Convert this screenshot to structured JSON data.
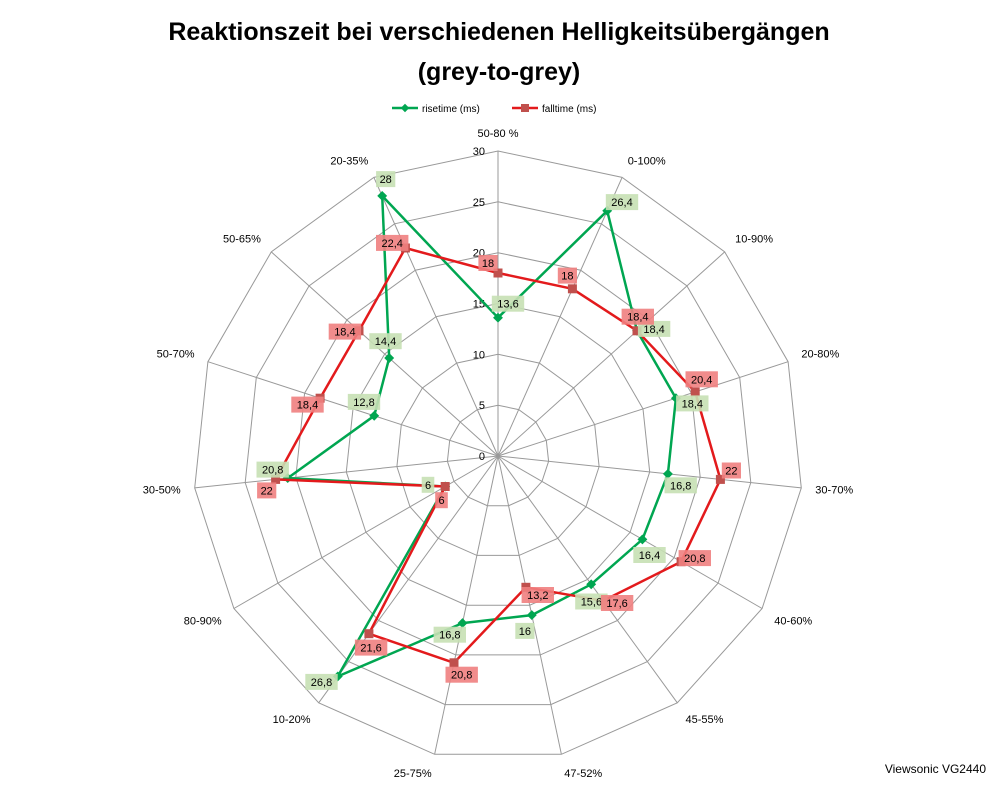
{
  "chart_data": {
    "type": "radar",
    "title": "Reaktionszeit bei verschiedenen Helligkeitsübergängen",
    "subtitle": "(grey-to-grey)",
    "categories": [
      "50-80 %",
      "0-100%",
      "10-90%",
      "20-80%",
      "30-70%",
      "40-60%",
      "45-55%",
      "47-52%",
      "25-75%",
      "10-20%",
      "80-90%",
      "30-50%",
      "50-70%",
      "50-65%",
      "20-35%"
    ],
    "rlim": [
      0,
      30
    ],
    "ticks": [
      0,
      5,
      10,
      15,
      20,
      25,
      30
    ],
    "grid": true,
    "legend_position": "top",
    "series": [
      {
        "name": "risetime (ms)",
        "color": "#00A651",
        "label_bg": "#C6E0B4",
        "values": [
          13.6,
          26.4,
          18.4,
          18.4,
          16.8,
          16.4,
          15.6,
          16,
          16.8,
          26.8,
          6,
          20.8,
          12.8,
          14.4,
          28
        ],
        "labels": [
          "13,6",
          "26,4",
          "18,4",
          "18,4",
          "16,8",
          "16,4",
          "15,6",
          "16",
          "16,8",
          "26,8",
          "6",
          "20,8",
          "12,8",
          "14,4",
          "28"
        ]
      },
      {
        "name": "falltime (ms)",
        "color": "#E31A1C",
        "marker": "#C0504D",
        "label_bg": "#F08080",
        "values": [
          18,
          18,
          18.4,
          20.4,
          22,
          20.8,
          17.6,
          13.2,
          20.8,
          21.6,
          6,
          22,
          18.4,
          18.4,
          22.4
        ],
        "labels": [
          "18",
          "18",
          "18,4",
          "20,4",
          "22",
          "20,8",
          "17,6",
          "13,2",
          "20,8",
          "21,6",
          "6",
          "22",
          "18,4",
          "18,4",
          "22,4"
        ]
      }
    ]
  },
  "footer": "Viewsonic VG2440"
}
